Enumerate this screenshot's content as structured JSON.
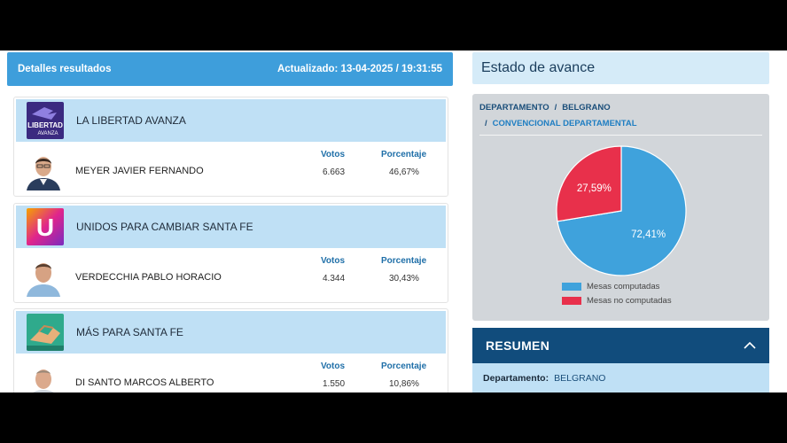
{
  "results": {
    "title": "Detalles resultados",
    "updated": "Actualizado: 13-04-2025 / 19:31:55"
  },
  "columns": {
    "votes": "Votos",
    "percent": "Porcentaje"
  },
  "parties": [
    {
      "name": "LA LIBERTAD AVANZA",
      "logo": "la-libertad-avanza-logo",
      "logo_text_top": "LIBERTAD",
      "logo_text_bottom": "AVANZA",
      "candidate": "MEYER JAVIER FERNANDO",
      "votes": "6.663",
      "percent": "46,67%"
    },
    {
      "name": "UNIDOS PARA CAMBIAR SANTA FE",
      "logo": "unidos-logo",
      "logo_letter": "U",
      "candidate": "VERDECCHIA PABLO HORACIO",
      "votes": "4.344",
      "percent": "30,43%"
    },
    {
      "name": "MÁS PARA SANTA FE",
      "logo": "mas-para-santa-fe-logo",
      "candidate": "DI SANTO MARCOS ALBERTO",
      "votes": "1.550",
      "percent": "10,86%"
    }
  ],
  "estado": {
    "title": "Estado de avance",
    "crumb_level1": "DEPARTAMENTO",
    "crumb_level1_value": "BELGRANO",
    "crumb_level2": "CONVENCIONAL DEPARTAMENTAL"
  },
  "chart_data": {
    "type": "pie",
    "slices": [
      {
        "label": "Mesas computadas",
        "value": 72.41,
        "display": "72,41%",
        "color": "#3fa2dc"
      },
      {
        "label": "Mesas no computadas",
        "value": 27.59,
        "display": "27,59%",
        "color": "#e8304b"
      }
    ],
    "legend_position": "bottom"
  },
  "resumen": {
    "title": "RESUMEN",
    "dept_label": "Departamento:",
    "dept_value": "BELGRANO"
  },
  "colors": {
    "accent": "#3e9edb",
    "band": "#bfe0f5",
    "navy": "#114c7c"
  }
}
